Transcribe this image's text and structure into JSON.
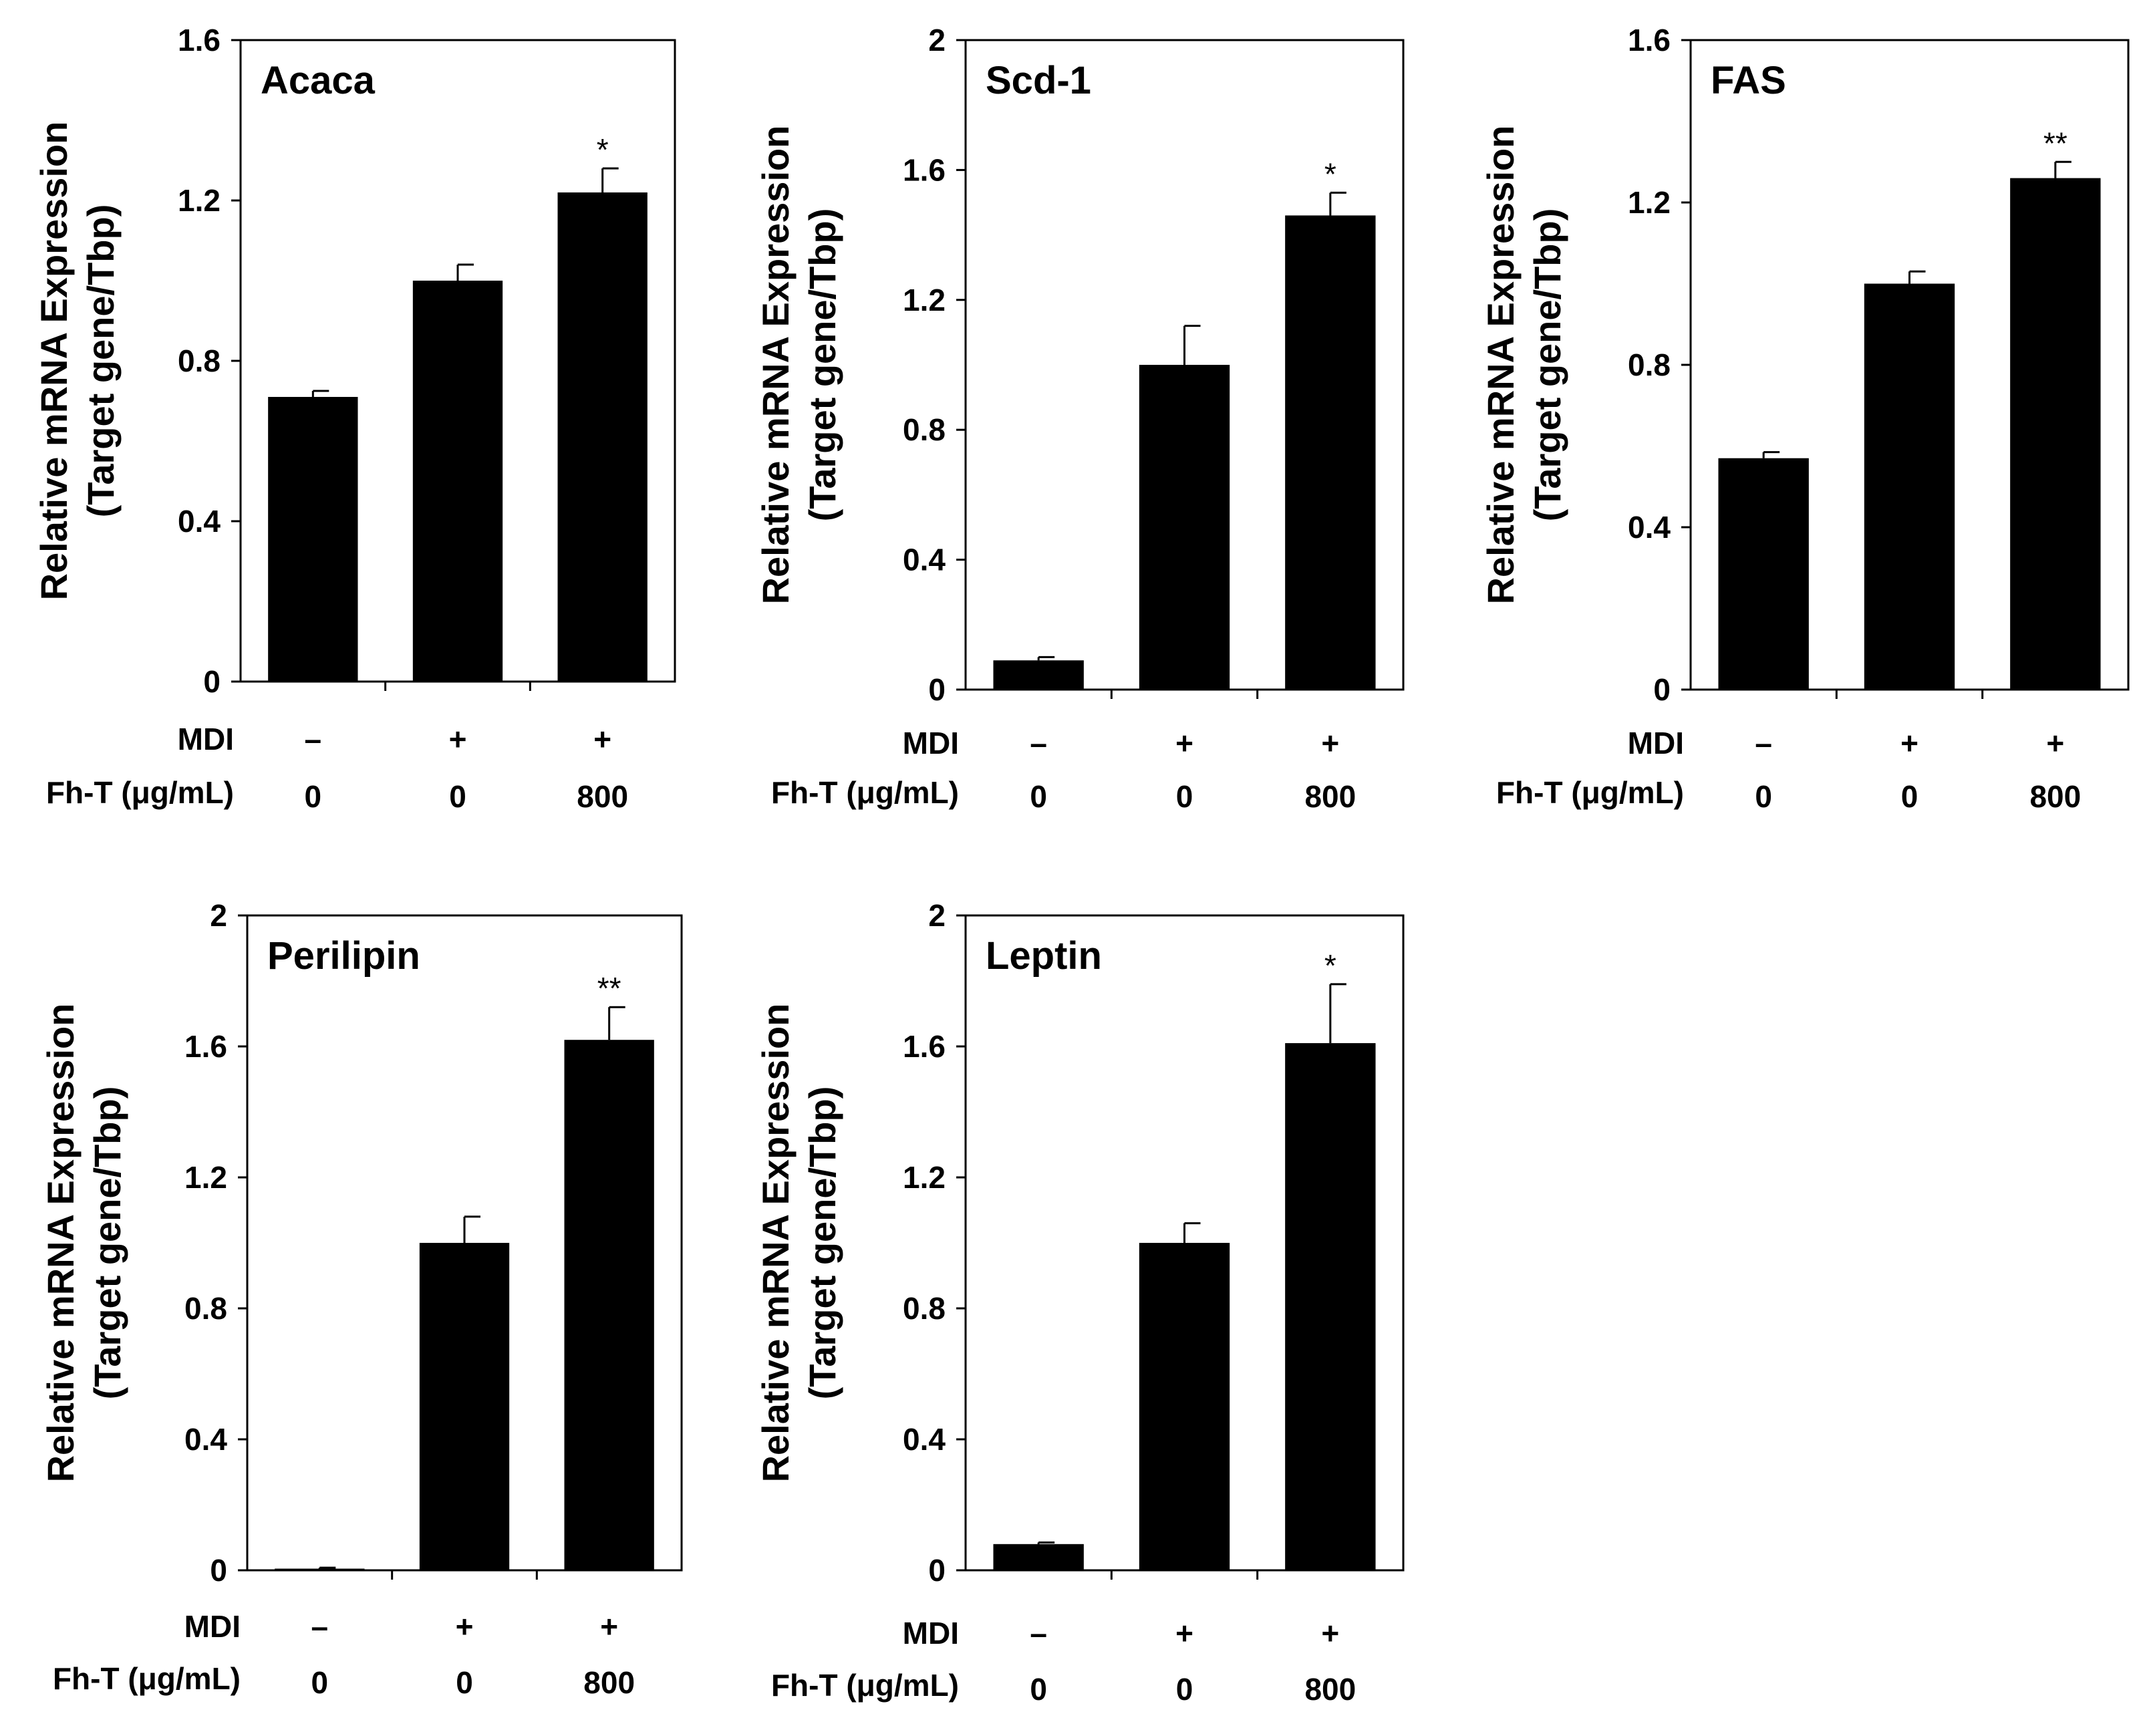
{
  "colors": {
    "bar": "#000000",
    "axis": "#000000",
    "background": "#ffffff"
  },
  "chart_data": [
    {
      "type": "bar",
      "title": "Acaca",
      "ylabel": [
        "Relative mRNA Expression",
        "(Target gene/Tbp)"
      ],
      "ylim": [
        0,
        1.6
      ],
      "yticks": [
        "0",
        "0.4",
        "0.8",
        "1.2",
        "1.6"
      ],
      "row_labels": [
        "MDI",
        "Fh-T (μg/mL)"
      ],
      "categories": [
        {
          "mdi": "–",
          "fht": "0"
        },
        {
          "mdi": "+",
          "fht": "0"
        },
        {
          "mdi": "+",
          "fht": "800"
        }
      ],
      "values": [
        0.71,
        1.0,
        1.22
      ],
      "errors": [
        0.015,
        0.04,
        0.06
      ],
      "significance": [
        "",
        "",
        "*"
      ]
    },
    {
      "type": "bar",
      "title": "Scd-1",
      "ylabel": [
        "Relative mRNA Expression",
        "(Target gene/Tbp)"
      ],
      "ylim": [
        0,
        2
      ],
      "yticks": [
        "0",
        "0.4",
        "0.8",
        "1.2",
        "1.6",
        "2"
      ],
      "row_labels": [
        "MDI",
        "Fh-T (μg/mL)"
      ],
      "categories": [
        {
          "mdi": "–",
          "fht": "0"
        },
        {
          "mdi": "+",
          "fht": "0"
        },
        {
          "mdi": "+",
          "fht": "800"
        }
      ],
      "values": [
        0.09,
        1.0,
        1.46
      ],
      "errors": [
        0.01,
        0.12,
        0.07
      ],
      "significance": [
        "",
        "",
        "*"
      ]
    },
    {
      "type": "bar",
      "title": "FAS",
      "ylabel": [
        "Relative mRNA Expression",
        "(Target gene/Tbp)"
      ],
      "ylim": [
        0,
        1.6
      ],
      "yticks": [
        "0",
        "0.4",
        "0.8",
        "1.2",
        "1.6"
      ],
      "row_labels": [
        "MDI",
        "Fh-T (μg/mL)"
      ],
      "categories": [
        {
          "mdi": "–",
          "fht": "0"
        },
        {
          "mdi": "+",
          "fht": "0"
        },
        {
          "mdi": "+",
          "fht": "800"
        }
      ],
      "values": [
        0.57,
        1.0,
        1.26
      ],
      "errors": [
        0.015,
        0.03,
        0.04
      ],
      "significance": [
        "",
        "",
        "**"
      ]
    },
    {
      "type": "bar",
      "title": "Perilipin",
      "ylabel": [
        "Relative mRNA Expression",
        "(Target gene/Tbp)"
      ],
      "ylim": [
        0,
        2
      ],
      "yticks": [
        "0",
        "0.4",
        "0.8",
        "1.2",
        "1.6",
        "2"
      ],
      "row_labels": [
        "MDI",
        "Fh-T (μg/mL)"
      ],
      "categories": [
        {
          "mdi": "–",
          "fht": "0"
        },
        {
          "mdi": "+",
          "fht": "0"
        },
        {
          "mdi": "+",
          "fht": "800"
        }
      ],
      "values": [
        0.005,
        1.0,
        1.62
      ],
      "errors": [
        0.003,
        0.08,
        0.1
      ],
      "significance": [
        "",
        "",
        "**"
      ]
    },
    {
      "type": "bar",
      "title": "Leptin",
      "ylabel": [
        "Relative mRNA Expression",
        "(Target gene/Tbp)"
      ],
      "ylim": [
        0,
        2
      ],
      "yticks": [
        "0",
        "0.4",
        "0.8",
        "1.2",
        "1.6",
        "2"
      ],
      "row_labels": [
        "MDI",
        "Fh-T (μg/mL)"
      ],
      "categories": [
        {
          "mdi": "–",
          "fht": "0"
        },
        {
          "mdi": "+",
          "fht": "0"
        },
        {
          "mdi": "+",
          "fht": "800"
        }
      ],
      "values": [
        0.08,
        1.0,
        1.61
      ],
      "errors": [
        0.005,
        0.06,
        0.18
      ],
      "significance": [
        "",
        "",
        "*"
      ]
    }
  ]
}
